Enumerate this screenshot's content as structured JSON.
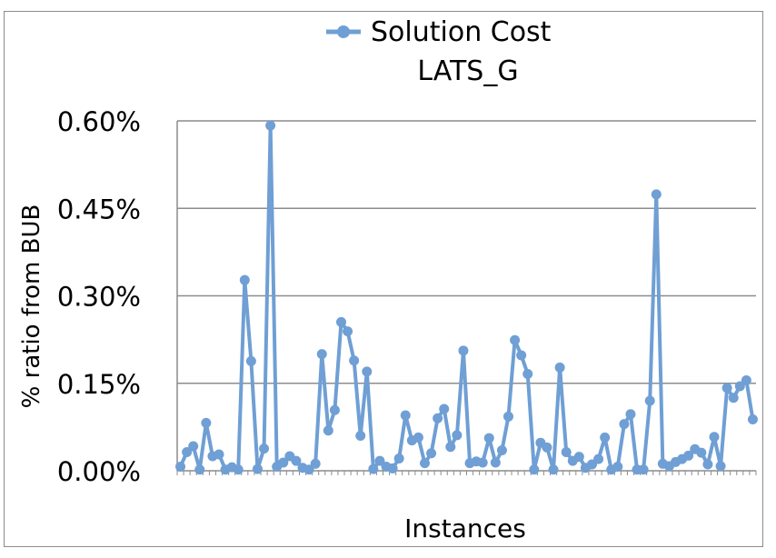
{
  "chart_data": {
    "type": "line",
    "title": "LATS_G",
    "xlabel": "Instances",
    "ylabel": "% ratio from BUB",
    "ylim": [
      0,
      0.6
    ],
    "yticks": [
      0,
      0.15,
      0.3,
      0.45,
      0.6
    ],
    "ytick_labels": [
      "0.00%",
      "0.15%",
      "0.30%",
      "0.45%",
      "0.60%"
    ],
    "grid": true,
    "legend_position": "top",
    "series": [
      {
        "name": "Solution Cost",
        "color": "#6f9fd4",
        "marker": "circle",
        "values": [
          0.007,
          0.032,
          0.042,
          0.002,
          0.082,
          0.025,
          0.028,
          0.002,
          0.006,
          0.002,
          0.327,
          0.188,
          0.003,
          0.038,
          0.592,
          0.007,
          0.014,
          0.025,
          0.017,
          0.005,
          0.002,
          0.012,
          0.2,
          0.069,
          0.104,
          0.255,
          0.239,
          0.189,
          0.06,
          0.17,
          0.003,
          0.017,
          0.007,
          0.004,
          0.021,
          0.095,
          0.052,
          0.057,
          0.013,
          0.03,
          0.09,
          0.106,
          0.041,
          0.061,
          0.206,
          0.013,
          0.016,
          0.014,
          0.056,
          0.014,
          0.035,
          0.093,
          0.224,
          0.198,
          0.166,
          0.002,
          0.048,
          0.04,
          0.002,
          0.177,
          0.032,
          0.017,
          0.024,
          0.005,
          0.011,
          0.02,
          0.057,
          0.002,
          0.007,
          0.08,
          0.097,
          0.002,
          0.002,
          0.12,
          0.474,
          0.012,
          0.008,
          0.015,
          0.02,
          0.026,
          0.037,
          0.031,
          0.011,
          0.058,
          0.008,
          0.142,
          0.125,
          0.145,
          0.155,
          0.088
        ]
      }
    ]
  }
}
